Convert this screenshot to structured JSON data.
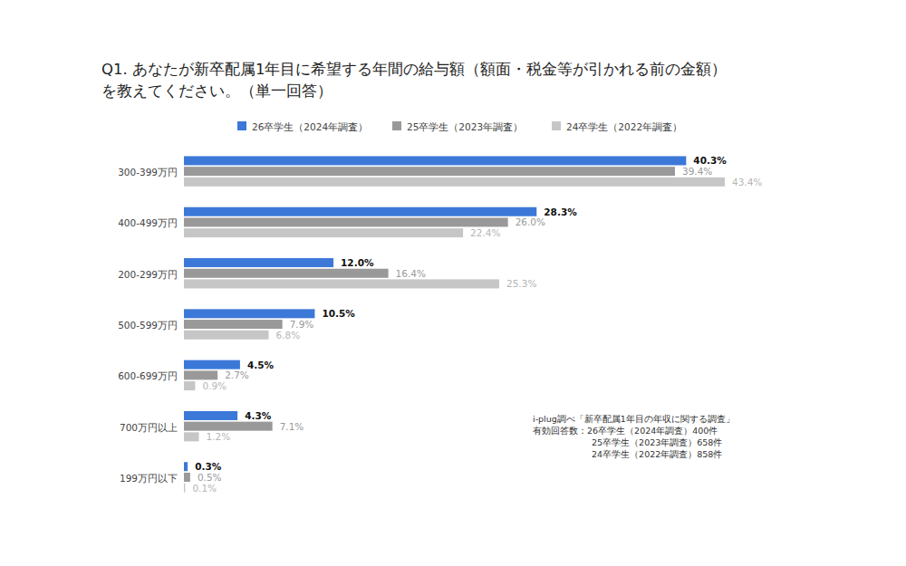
{
  "chart_data": {
    "type": "bar",
    "orientation": "horizontal",
    "title": "Q1. あなたが新卒配属1年目に希望する年間の給与額（額面・税金等が引かれる前の金額）\nを教えてください。（単一回答）",
    "categories": [
      "300-399万円",
      "400-499万円",
      "200-299万円",
      "500-599万円",
      "600-699万円",
      "700万円以上",
      "199万円以下"
    ],
    "series": [
      {
        "name": "26卒学生（2024年調査）",
        "color": "#3c78d8",
        "values": [
          40.3,
          28.3,
          12.0,
          10.5,
          4.5,
          4.3,
          0.3
        ],
        "value_labels": [
          "40.3%",
          "28.3%",
          "12.0%",
          "10.5%",
          "4.5%",
          "4.3%",
          "0.3%"
        ]
      },
      {
        "name": "25卒学生（2023年調査）",
        "color": "#999999",
        "values": [
          39.4,
          26.0,
          16.4,
          7.9,
          2.7,
          7.1,
          0.5
        ],
        "value_labels": [
          "39.4%",
          "26.0%",
          "16.4%",
          "7.9%",
          "2.7%",
          "7.1%",
          "0.5%"
        ]
      },
      {
        "name": "24卒学生（2022年調査）",
        "color": "#c6c6c6",
        "values": [
          43.4,
          22.4,
          25.3,
          6.8,
          0.9,
          1.2,
          0.1
        ],
        "value_labels": [
          "43.4%",
          "22.4%",
          "25.3%",
          "6.8%",
          "0.9%",
          "1.2%",
          "0.1%"
        ]
      }
    ],
    "xlim": [
      0,
      45
    ],
    "data_labels": true,
    "tick_labels": "y",
    "legend": "top",
    "grid": false,
    "annotations": [
      "i-plug調べ「新卒配属1年目の年収に関する調査」",
      "有効回答数：26卒学生（2024年調査）400件",
      "25卒学生（2023年調査）658件",
      "24卒学生（2022年調査）858件"
    ]
  }
}
